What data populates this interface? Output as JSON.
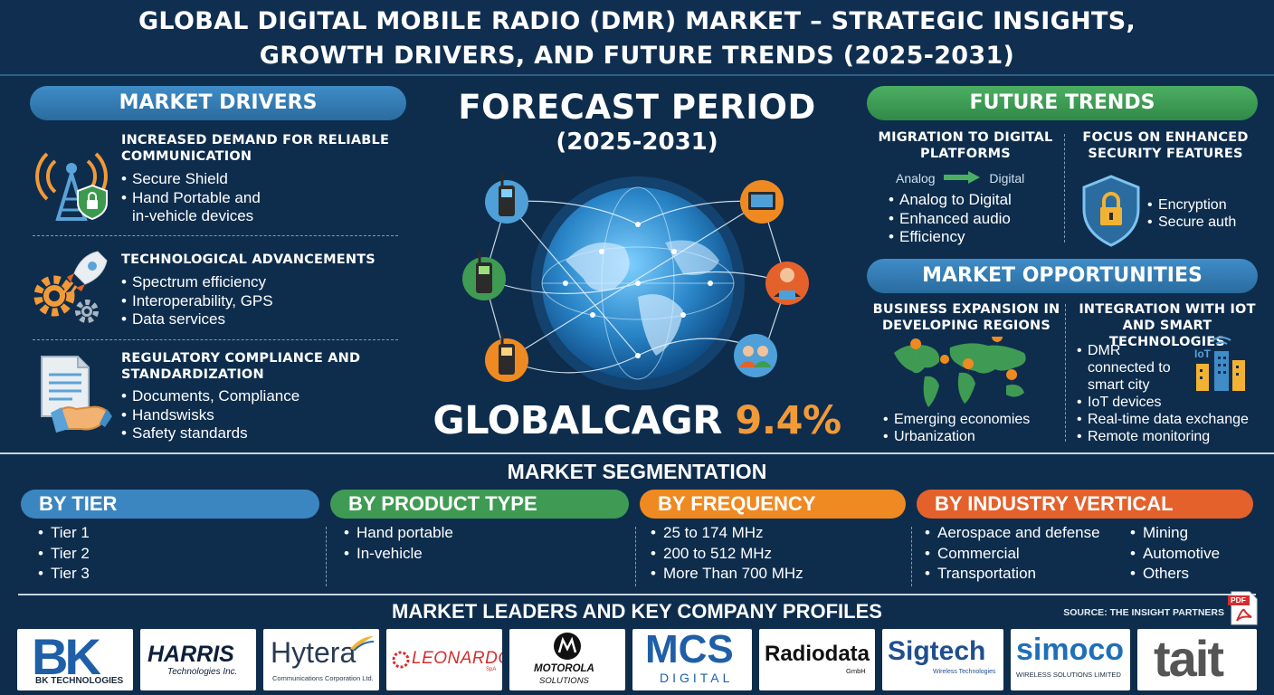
{
  "title": {
    "line1": "GLOBAL DIGITAL MOBILE RADIO (DMR) MARKET – STRATEGIC INSIGHTS,",
    "line2": "GROWTH DRIVERS, AND FUTURE TRENDS (2025-2031)"
  },
  "drivers": {
    "heading": "MARKET DRIVERS",
    "items": [
      {
        "title": "INCREASED DEMAND FOR RELIABLE COMMUNICATION",
        "icon": "radio-tower-shield-icon",
        "bullets": [
          "Secure Shield",
          "Hand Portable and",
          "in-vehicle devices"
        ]
      },
      {
        "title": "TECHNOLOGICAL ADVANCEMENTS",
        "icon": "rocket-gears-icon",
        "bullets": [
          "Spectrum efficiency",
          "Interoperability, GPS",
          "Data services"
        ]
      },
      {
        "title": "REGULATORY COMPLIANCE AND STANDARDIZATION",
        "icon": "document-handshake-icon",
        "bullets": [
          "Documents, Compliance",
          "Handswisks",
          "Safety standards"
        ]
      }
    ]
  },
  "forecast": {
    "title": "FORECAST PERIOD",
    "years": "(2025-2031)",
    "cagr_label": "GLOBALCAGR",
    "cagr_value": "9.4%"
  },
  "trends": {
    "heading": "FUTURE TRENDS",
    "left": {
      "title": "MIGRATION TO DIGITAL PLATFORMS",
      "from": "Analog",
      "to": "Digital",
      "bullets": [
        "Analog to Digital",
        "Enhanced audio",
        "Efficiency"
      ]
    },
    "right": {
      "title": "FOCUS ON ENHANCED SECURITY FEATURES",
      "icon": "shield-lock-icon",
      "bullets": [
        "Encryption",
        "Secure auth"
      ]
    }
  },
  "opportunities": {
    "heading": "MARKET OPPORTUNITIES",
    "left": {
      "title": "BUSINESS EXPANSION IN DEVELOPING REGIONS",
      "icon": "world-map-pins-icon",
      "bullets": [
        "Emerging economies",
        "Urbanization"
      ]
    },
    "right": {
      "title": "INTEGRATION WITH IOT AND SMART TECHNOLOGIES",
      "icon": "smart-city-icon",
      "bullets": [
        "DMR",
        "connected to",
        "smart city",
        "IoT devices",
        "Real-time data exchange",
        "Remote monitoring"
      ],
      "iot_label": "IoT"
    }
  },
  "segmentation": {
    "heading": "MARKET SEGMENTATION",
    "groups": [
      {
        "label": "BY TIER",
        "color": "#3b86c1",
        "items": [
          "Tier 1",
          "Tier 2",
          "Tier 3"
        ]
      },
      {
        "label": "BY PRODUCT TYPE",
        "color": "#3f9b53",
        "items": [
          "Hand portable",
          "In-vehicle"
        ]
      },
      {
        "label": "BY FREQUENCY",
        "color": "#ef8a22",
        "items": [
          "25 to 174 MHz",
          "200 to 512 MHz",
          "More Than 700 MHz"
        ]
      },
      {
        "label": "BY INDUSTRY VERTICAL",
        "color": "#e4612b",
        "items": [
          "Aerospace and defense",
          "Commercial",
          "Transportation"
        ],
        "items2": [
          "Mining",
          "Automotive",
          "Others"
        ]
      }
    ]
  },
  "leaders": {
    "heading": "MARKET LEADERS AND KEY COMPANY PROFILES",
    "source": "SOURCE: THE INSIGHT PARTNERS",
    "pdf_label": "PDF",
    "logos": [
      {
        "name": "BK",
        "sub": "BK TECHNOLOGIES"
      },
      {
        "name": "HARRIS",
        "sub": "Technologies Inc."
      },
      {
        "name": "Hytera",
        "sub": "Communications Corporation Ltd."
      },
      {
        "name": "LEONARDO",
        "sub": "SpA"
      },
      {
        "name": "MOTOROLA",
        "sub": "SOLUTIONS"
      },
      {
        "name": "MCS",
        "sub": "DIGITAL"
      },
      {
        "name": "Radiodata",
        "sub": "GmbH"
      },
      {
        "name": "Sigtech",
        "sub": "Wireless Technologies"
      },
      {
        "name": "simoco",
        "sub": "WIRELESS SOLUTIONS LIMITED"
      },
      {
        "name": "tait",
        "sub": ""
      }
    ]
  },
  "colors": {
    "background": "#0e2d4d",
    "blue_pill": "#3f8cc7",
    "green_pill": "#4cae62",
    "accent_orange": "#f29a38"
  }
}
